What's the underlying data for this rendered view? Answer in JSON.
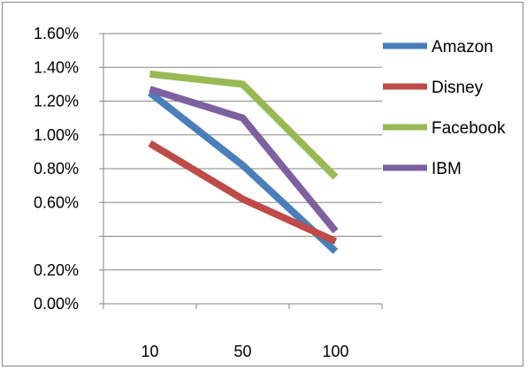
{
  "chart_data": {
    "type": "line",
    "categories": [
      "10",
      "50",
      "100"
    ],
    "y_tick_labels": [
      "0.00%",
      "0.20%",
      "",
      "0.60%",
      "0.80%",
      "1.00%",
      "1.20%",
      "1.40%",
      "1.60%"
    ],
    "ylim": [
      0,
      1.6
    ],
    "y_unit": "%",
    "grid": true,
    "legend_position": "right",
    "series": [
      {
        "name": "Amazon",
        "color": "#4a7ebb",
        "values": [
          1.25,
          0.82,
          0.31
        ]
      },
      {
        "name": "Disney",
        "color": "#be4b48",
        "values": [
          0.95,
          0.62,
          0.37
        ]
      },
      {
        "name": "Facebook",
        "color": "#98b954",
        "values": [
          1.36,
          1.3,
          0.75
        ]
      },
      {
        "name": "IBM",
        "color": "#7d60a0",
        "values": [
          1.27,
          1.1,
          0.43
        ]
      }
    ]
  }
}
